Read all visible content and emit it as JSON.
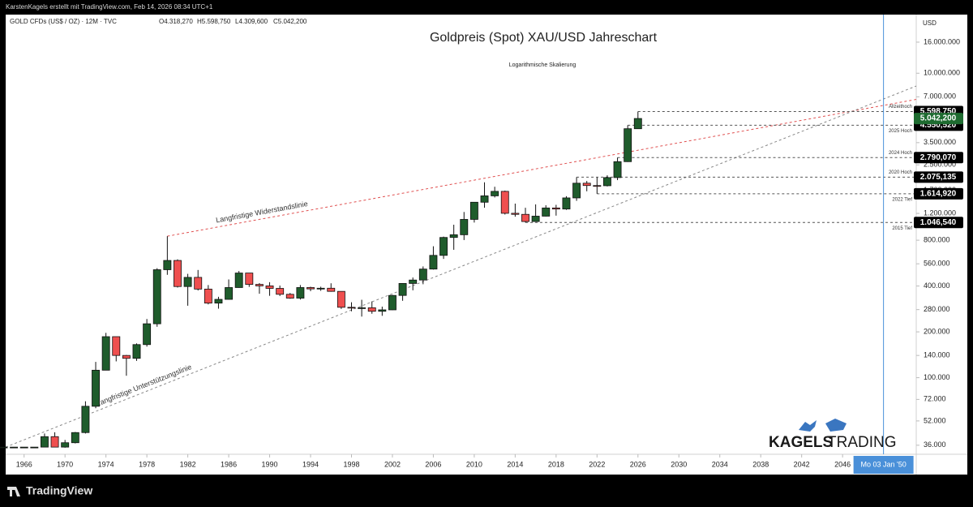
{
  "header": {
    "credit": "KarstenKagels erstellt mit TradingView.com, Feb 14, 2026 08:34 UTC+1",
    "symbol": "GOLD CFDs (US$ / OZ) · 12M · TVC",
    "ohlc": [
      "O4.318,270",
      "H5.598,750",
      "L4.309,600",
      "C5.042,200"
    ]
  },
  "chart_data": {
    "type": "candlestick",
    "title": "Goldpreis (Spot) XAU/USD Jahreschart",
    "subtitle": "Logarithmische Skalierung",
    "y_axis_unit": "USD",
    "log_scale": true,
    "grid": false,
    "up_color": "#1f5c2c",
    "down_color": "#ef4f4f",
    "x": [
      1964,
      1965,
      1966,
      1967,
      1968,
      1969,
      1970,
      1971,
      1972,
      1973,
      1974,
      1975,
      1976,
      1977,
      1978,
      1979,
      1980,
      1981,
      1982,
      1983,
      1984,
      1985,
      1986,
      1987,
      1988,
      1989,
      1990,
      1991,
      1992,
      1993,
      1994,
      1995,
      1996,
      1997,
      1998,
      1999,
      2000,
      2001,
      2002,
      2003,
      2004,
      2005,
      2006,
      2007,
      2008,
      2009,
      2010,
      2011,
      2012,
      2013,
      2014,
      2015,
      2016,
      2017,
      2018,
      2019,
      2020,
      2021,
      2022,
      2023,
      2024,
      2025,
      2026
    ],
    "open": [
      35,
      35,
      35,
      35,
      35,
      41,
      35,
      37.4,
      43.6,
      64.9,
      112,
      186,
      140,
      134,
      165,
      226,
      512,
      589,
      397,
      456,
      382,
      309,
      327,
      391,
      487,
      410,
      401,
      386,
      353,
      333,
      391,
      383,
      387,
      369,
      290,
      288,
      288,
      273,
      279,
      347,
      416,
      438,
      517,
      636,
      834,
      869,
      1096,
      1421,
      1565,
      1675,
      1202,
      1183,
      1061,
      1151,
      1303,
      1282,
      1517,
      1895,
      1829,
      1824,
      2063,
      2625,
      4318.27
    ],
    "high": [
      35,
      35,
      35,
      35,
      43,
      43.8,
      39,
      44,
      70,
      127,
      197,
      186,
      141,
      168,
      243,
      524,
      850,
      599,
      481,
      510,
      406,
      340,
      442,
      502,
      487,
      418,
      424,
      403,
      360,
      406,
      396,
      396,
      417,
      369,
      313,
      325,
      317,
      293,
      350,
      417,
      455,
      538,
      730,
      845,
      1011,
      1226,
      1421,
      1921,
      1796,
      1694,
      1392,
      1307,
      1375,
      1357,
      1366,
      1557,
      2075.135,
      1960,
      2070,
      2135,
      2790.07,
      4550.52,
      5598.75
    ],
    "low": [
      35,
      35,
      35,
      35,
      35,
      35,
      34.7,
      37,
      43,
      63,
      115,
      128,
      103,
      129,
      160,
      216,
      474,
      391,
      297,
      374,
      303,
      284,
      326,
      390,
      395,
      356,
      345,
      344,
      330,
      326,
      370,
      372,
      367,
      283,
      273,
      252,
      263,
      255,
      278,
      320,
      375,
      411,
      513,
      603,
      692,
      802,
      1045,
      1307,
      1527,
      1180,
      1142,
      1046.54,
      1061,
      1146,
      1160,
      1266,
      1451,
      1677,
      1614.92,
      1804,
      1985,
      2614,
      4309.6
    ],
    "close": [
      35,
      35,
      35,
      35,
      41,
      35,
      37.4,
      43.6,
      64.9,
      112,
      186,
      140,
      134,
      165,
      226,
      512,
      589,
      397,
      456,
      382,
      309,
      327,
      391,
      487,
      410,
      401,
      386,
      353,
      333,
      391,
      383,
      387,
      369,
      290,
      288,
      288,
      273,
      279,
      347,
      416,
      438,
      517,
      636,
      834,
      869,
      1096,
      1421,
      1565,
      1675,
      1202,
      1183,
      1061,
      1151,
      1303,
      1282,
      1517,
      1895,
      1829,
      1824,
      2063,
      2625,
      4320,
      5042.2
    ],
    "xlim": [
      1964.2,
      2053.2
    ],
    "xticks": [
      1966,
      1970,
      1974,
      1978,
      1982,
      1986,
      1990,
      1994,
      1998,
      2002,
      2006,
      2010,
      2014,
      2018,
      2022,
      2026,
      2030,
      2034,
      2038,
      2042,
      2046
    ],
    "ylim": [
      31.4,
      24270
    ],
    "yticks": [
      {
        "value": 16000,
        "label": "16.000.000"
      },
      {
        "value": 10000,
        "label": "10.000.000"
      },
      {
        "value": 7000,
        "label": "7.000.000"
      },
      {
        "value": 3500,
        "label": "3.500.000"
      },
      {
        "value": 2500,
        "label": "2.500.000"
      },
      {
        "value": 1700,
        "label": "1.700.000"
      },
      {
        "value": 1200,
        "label": "1.200.000"
      },
      {
        "value": 800,
        "label": "800.000"
      },
      {
        "value": 560,
        "label": "560.000"
      },
      {
        "value": 400,
        "label": "400.000"
      },
      {
        "value": 280,
        "label": "280.000"
      },
      {
        "value": 200,
        "label": "200.000"
      },
      {
        "value": 140,
        "label": "140.000"
      },
      {
        "value": 100,
        "label": "100.000"
      },
      {
        "value": 72,
        "label": "72.000"
      },
      {
        "value": 52,
        "label": "52.000"
      },
      {
        "value": 36,
        "label": "36.000"
      }
    ],
    "levels": [
      {
        "name": "Allzeithoch",
        "value": 5598.75,
        "value_label": "5.598,750",
        "from": 2026,
        "label_position": "above"
      },
      {
        "name": "2025 Hoch",
        "value": 4550.52,
        "value_label": "4.550,520",
        "from": 2025,
        "label_position": "below"
      },
      {
        "name": "2024 Hoch",
        "value": 2790.07,
        "value_label": "2.790,070",
        "from": 2024,
        "label_position": "above"
      },
      {
        "name": "2020 Hoch",
        "value": 2075.135,
        "value_label": "2.075,135",
        "from": 2020,
        "label_position": "above"
      },
      {
        "name": "2022 Tief",
        "value": 1614.92,
        "value_label": "1.614,920",
        "from": 2022,
        "label_position": "below"
      },
      {
        "name": "2015 Tief",
        "value": 1046.54,
        "value_label": "1.046,540",
        "from": 2015,
        "label_position": "below"
      }
    ],
    "last_price": {
      "value": 5042.2,
      "label": "5.042,200",
      "color": "#1e6b30"
    },
    "trendlines": [
      {
        "name": "Langfristige Widerstandslinie",
        "color": "#e05050",
        "points": [
          [
            1980,
            850
          ],
          [
            2053.2,
            6730
          ]
        ]
      },
      {
        "name": "Langfristige Unterstützungslinie",
        "color": "#888888",
        "points": [
          [
            1964.2,
            35
          ],
          [
            2053.2,
            8240
          ]
        ]
      }
    ],
    "crosshair": {
      "x": 2050,
      "label": "Mo 03 Jan '50",
      "color": "#4a90d9"
    }
  },
  "branding": {
    "logo_bold": "KAGELS",
    "logo_light": "TRADING",
    "footer": "TradingView"
  }
}
